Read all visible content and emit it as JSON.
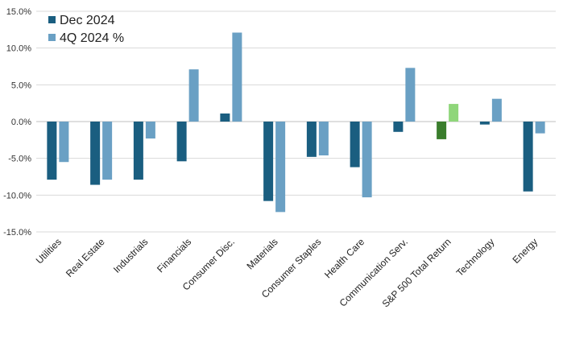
{
  "chart_data": {
    "type": "bar",
    "categories": [
      "Utilities",
      "Real Estate",
      "Industrials",
      "Financials",
      "Consumer Disc.",
      "Materials",
      "Consumer Staples",
      "Health Care",
      "Communication Serv.",
      "S&P 500 Total Return",
      "Technology",
      "Energy"
    ],
    "series": [
      {
        "name": "Dec 2024",
        "color": "#1a5e80",
        "highlight_color": "#3a7d2c",
        "values": [
          -7.9,
          -8.6,
          -7.9,
          -5.4,
          1.1,
          -10.8,
          -4.8,
          -6.2,
          -1.4,
          -2.4,
          -0.4,
          -9.5
        ]
      },
      {
        "name": "4Q 2024 %",
        "color": "#6aa0c4",
        "highlight_color": "#8fd67a",
        "values": [
          -5.5,
          -7.9,
          -2.3,
          7.1,
          12.1,
          -12.3,
          -4.6,
          -10.3,
          7.3,
          2.4,
          3.1,
          -1.6
        ]
      }
    ],
    "highlight_category": "S&P 500 Total Return",
    "yticks": [
      "15.0%",
      "10.0%",
      "5.0%",
      "0.0%",
      "-5.0%",
      "-10.0%",
      "-15.0%"
    ],
    "ylim": [
      -15,
      15
    ],
    "grid": true,
    "legend_position": "top-left"
  }
}
